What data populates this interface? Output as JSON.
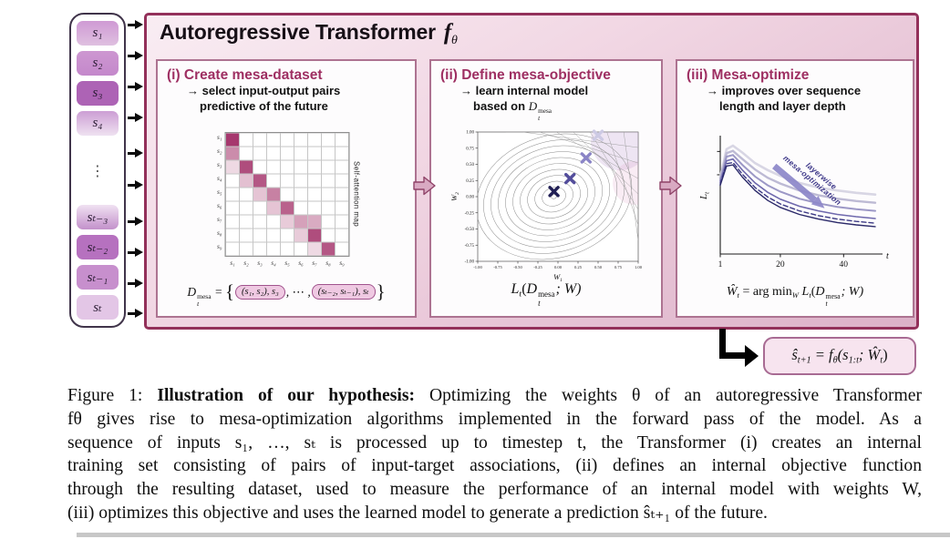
{
  "figure": {
    "title_main": "Autoregressive Transformer",
    "title_f": "f",
    "title_f_sub": "θ"
  },
  "sequence_tokens": [
    "s₁",
    "s₂",
    "s₃",
    "s₄",
    "⋮",
    "sₜ₋₃",
    "sₜ₋₂",
    "sₜ₋₁",
    "sₜ"
  ],
  "panels": {
    "one": {
      "heading": "(i) Create mesa-dataset",
      "sub1": "→ select input-output pairs",
      "sub2": "predictive of the future",
      "formula": {
        "lhs": "D",
        "lhs_sup": "mesa",
        "lhs_sub": "t",
        "eq": " = ",
        "open": "{",
        "pair1": "(s₁, s₂), s₃",
        "dots": ", ⋯ ,",
        "pair2": "(sₜ₋₂, sₜ₋₁), sₜ",
        "close": "}"
      }
    },
    "two": {
      "heading": "(ii) Define mesa-objective",
      "sub1": "→ learn internal model",
      "sub2_prefix": "based on ",
      "sub2_d": "D",
      "sub2_d_sup": "mesa",
      "sub2_d_sub": "t",
      "formula": {
        "l": "L",
        "l_sub": "t",
        "open": "(",
        "d": "D",
        "d_sup": "mesa",
        "d_sub": "t",
        "rest": "; W)"
      }
    },
    "three": {
      "heading": "(iii) Mesa-optimize",
      "sub1": "→ improves over sequence",
      "sub2": "length and layer depth",
      "formula": {
        "w": "Ŵ",
        "w_sub": "t",
        "eq": " = ",
        "argmin": "arg min",
        "argmin_sub": "W",
        "l": " L",
        "l_sub": "t",
        "open": "(",
        "d": "D",
        "d_sup": "mesa",
        "d_sub": "t",
        "rest": "; W)"
      }
    }
  },
  "output_formula": {
    "p1": "ŝ",
    "s1": "t+1",
    "p2": " = f",
    "s2": "θ",
    "p3": "(s",
    "s3": "1:t",
    "p4": "; Ŵ",
    "s4": "t",
    "p5": ")"
  },
  "caption": {
    "prefix": "Figure 1: ",
    "bold": "Illustration of our hypothesis:",
    "line1_rest": " Optimizing the weights θ of an autoregressive Transformer",
    "line2": "fθ gives rise to mesa-optimization algorithms implemented in the forward pass of the model. As a",
    "line3": "sequence of inputs s₁, …, sₜ is processed up to timestep t, the Transformer (i) creates an internal",
    "line4": "training set consisting of pairs of input-target associations, (ii) defines an internal objective function",
    "line5": "through the resulting dataset, used to measure the performance of an internal model with weights W,",
    "line6": "(iii) optimizes this objective and uses the learned model to generate a prediction ŝₜ₊₁ of the future."
  },
  "colors": {
    "box_border": "#93305a",
    "panel_border": "#ad7391",
    "heading": "#9e2f62",
    "arrow_fill": "#d9a9c2",
    "arrow_stroke": "#8f4368"
  },
  "chart_data": [
    {
      "type": "heatmap",
      "title": "Self-attention map",
      "x_labels": [
        "s₁",
        "s₂",
        "s₃",
        "s₄",
        "s₅",
        "s₆",
        "s₇",
        "s₈",
        "s₉"
      ],
      "y_labels": [
        "s₁",
        "s₂",
        "s₃",
        "s₄",
        "s₅",
        "s₆",
        "s₇",
        "s₈",
        "s₉"
      ],
      "matrix": [
        [
          0.95,
          0,
          0,
          0,
          0,
          0,
          0,
          0,
          0
        ],
        [
          0.55,
          0,
          0,
          0,
          0,
          0,
          0,
          0,
          0
        ],
        [
          0.18,
          0.85,
          0,
          0,
          0,
          0,
          0,
          0,
          0
        ],
        [
          0,
          0.3,
          0.8,
          0,
          0,
          0,
          0,
          0,
          0
        ],
        [
          0,
          0,
          0.28,
          0.6,
          0,
          0,
          0,
          0,
          0
        ],
        [
          0,
          0,
          0,
          0.28,
          0.75,
          0,
          0,
          0,
          0
        ],
        [
          0,
          0,
          0,
          0,
          0.25,
          0.45,
          0.4,
          0,
          0
        ],
        [
          0,
          0,
          0,
          0,
          0,
          0.25,
          0.85,
          0,
          0
        ],
        [
          0,
          0,
          0,
          0,
          0,
          0,
          0.18,
          0.8,
          0
        ]
      ],
      "colormap": {
        "low": "#ffffff",
        "high": "#a12d66"
      }
    },
    {
      "type": "scatter",
      "style": "contour-descent",
      "xlabel": "W",
      "xlabel_sub": "1",
      "ylabel": "W",
      "ylabel_sub": "2",
      "xlim": [
        -1.0,
        1.0
      ],
      "ylim": [
        -1.0,
        1.0
      ],
      "x_ticks": [
        -1.0,
        -0.75,
        -0.5,
        -0.25,
        0.0,
        0.25,
        0.5,
        0.75,
        1.0
      ],
      "y_ticks": [
        1.0,
        0.75,
        0.5,
        0.25,
        0.0,
        -0.25,
        -0.5,
        -0.75,
        -1.0
      ],
      "minimum": [
        -0.05,
        0.0
      ],
      "n_contours": 10,
      "descent_points": [
        {
          "x": 0.5,
          "y": 0.95,
          "color": "#cdcae4"
        },
        {
          "x": 0.35,
          "y": 0.6,
          "color": "#8a84c6"
        },
        {
          "x": 0.15,
          "y": 0.28,
          "color": "#534d9b"
        },
        {
          "x": -0.05,
          "y": 0.08,
          "color": "#211f55"
        }
      ]
    },
    {
      "type": "line",
      "xlabel": "t",
      "ylabel": "L",
      "ylabel_sub": "t",
      "x_ticks": [
        1,
        20,
        40
      ],
      "x": [
        1,
        3,
        5,
        8,
        12,
        16,
        20,
        26,
        32,
        38,
        44,
        50
      ],
      "series": [
        {
          "color": "#d8d6e4",
          "lw": 2.6,
          "dashed": false,
          "values": [
            0.66,
            0.9,
            0.93,
            0.87,
            0.78,
            0.72,
            0.67,
            0.61,
            0.57,
            0.545,
            0.525,
            0.51
          ]
        },
        {
          "color": "#bdbad4",
          "lw": 2.4,
          "dashed": false,
          "values": [
            0.645,
            0.865,
            0.885,
            0.815,
            0.725,
            0.655,
            0.605,
            0.545,
            0.505,
            0.475,
            0.455,
            0.44
          ]
        },
        {
          "color": "#9c98c6",
          "lw": 2.0,
          "dashed": false,
          "values": [
            0.63,
            0.835,
            0.85,
            0.765,
            0.665,
            0.59,
            0.535,
            0.475,
            0.435,
            0.405,
            0.385,
            0.37
          ]
        },
        {
          "color": "#6f69ad",
          "lw": 1.6,
          "dashed": false,
          "values": [
            0.615,
            0.8,
            0.815,
            0.72,
            0.61,
            0.53,
            0.47,
            0.41,
            0.37,
            0.34,
            0.32,
            0.305
          ]
        },
        {
          "color": "#3b3884",
          "lw": 1.4,
          "dashed": true,
          "values": [
            0.6,
            0.775,
            0.785,
            0.685,
            0.57,
            0.49,
            0.43,
            0.37,
            0.33,
            0.3,
            0.28,
            0.265
          ]
        },
        {
          "color": "#2c2a6a",
          "lw": 1.4,
          "dashed": false,
          "values": [
            0.59,
            0.755,
            0.765,
            0.66,
            0.545,
            0.46,
            0.4,
            0.34,
            0.3,
            0.27,
            0.25,
            0.235
          ]
        }
      ],
      "annotation": {
        "text_line1": "layerwise",
        "text_line2": "mesa-optimization",
        "arrow_color": "#8d87c9",
        "text_color": "#3e3889"
      }
    }
  ]
}
